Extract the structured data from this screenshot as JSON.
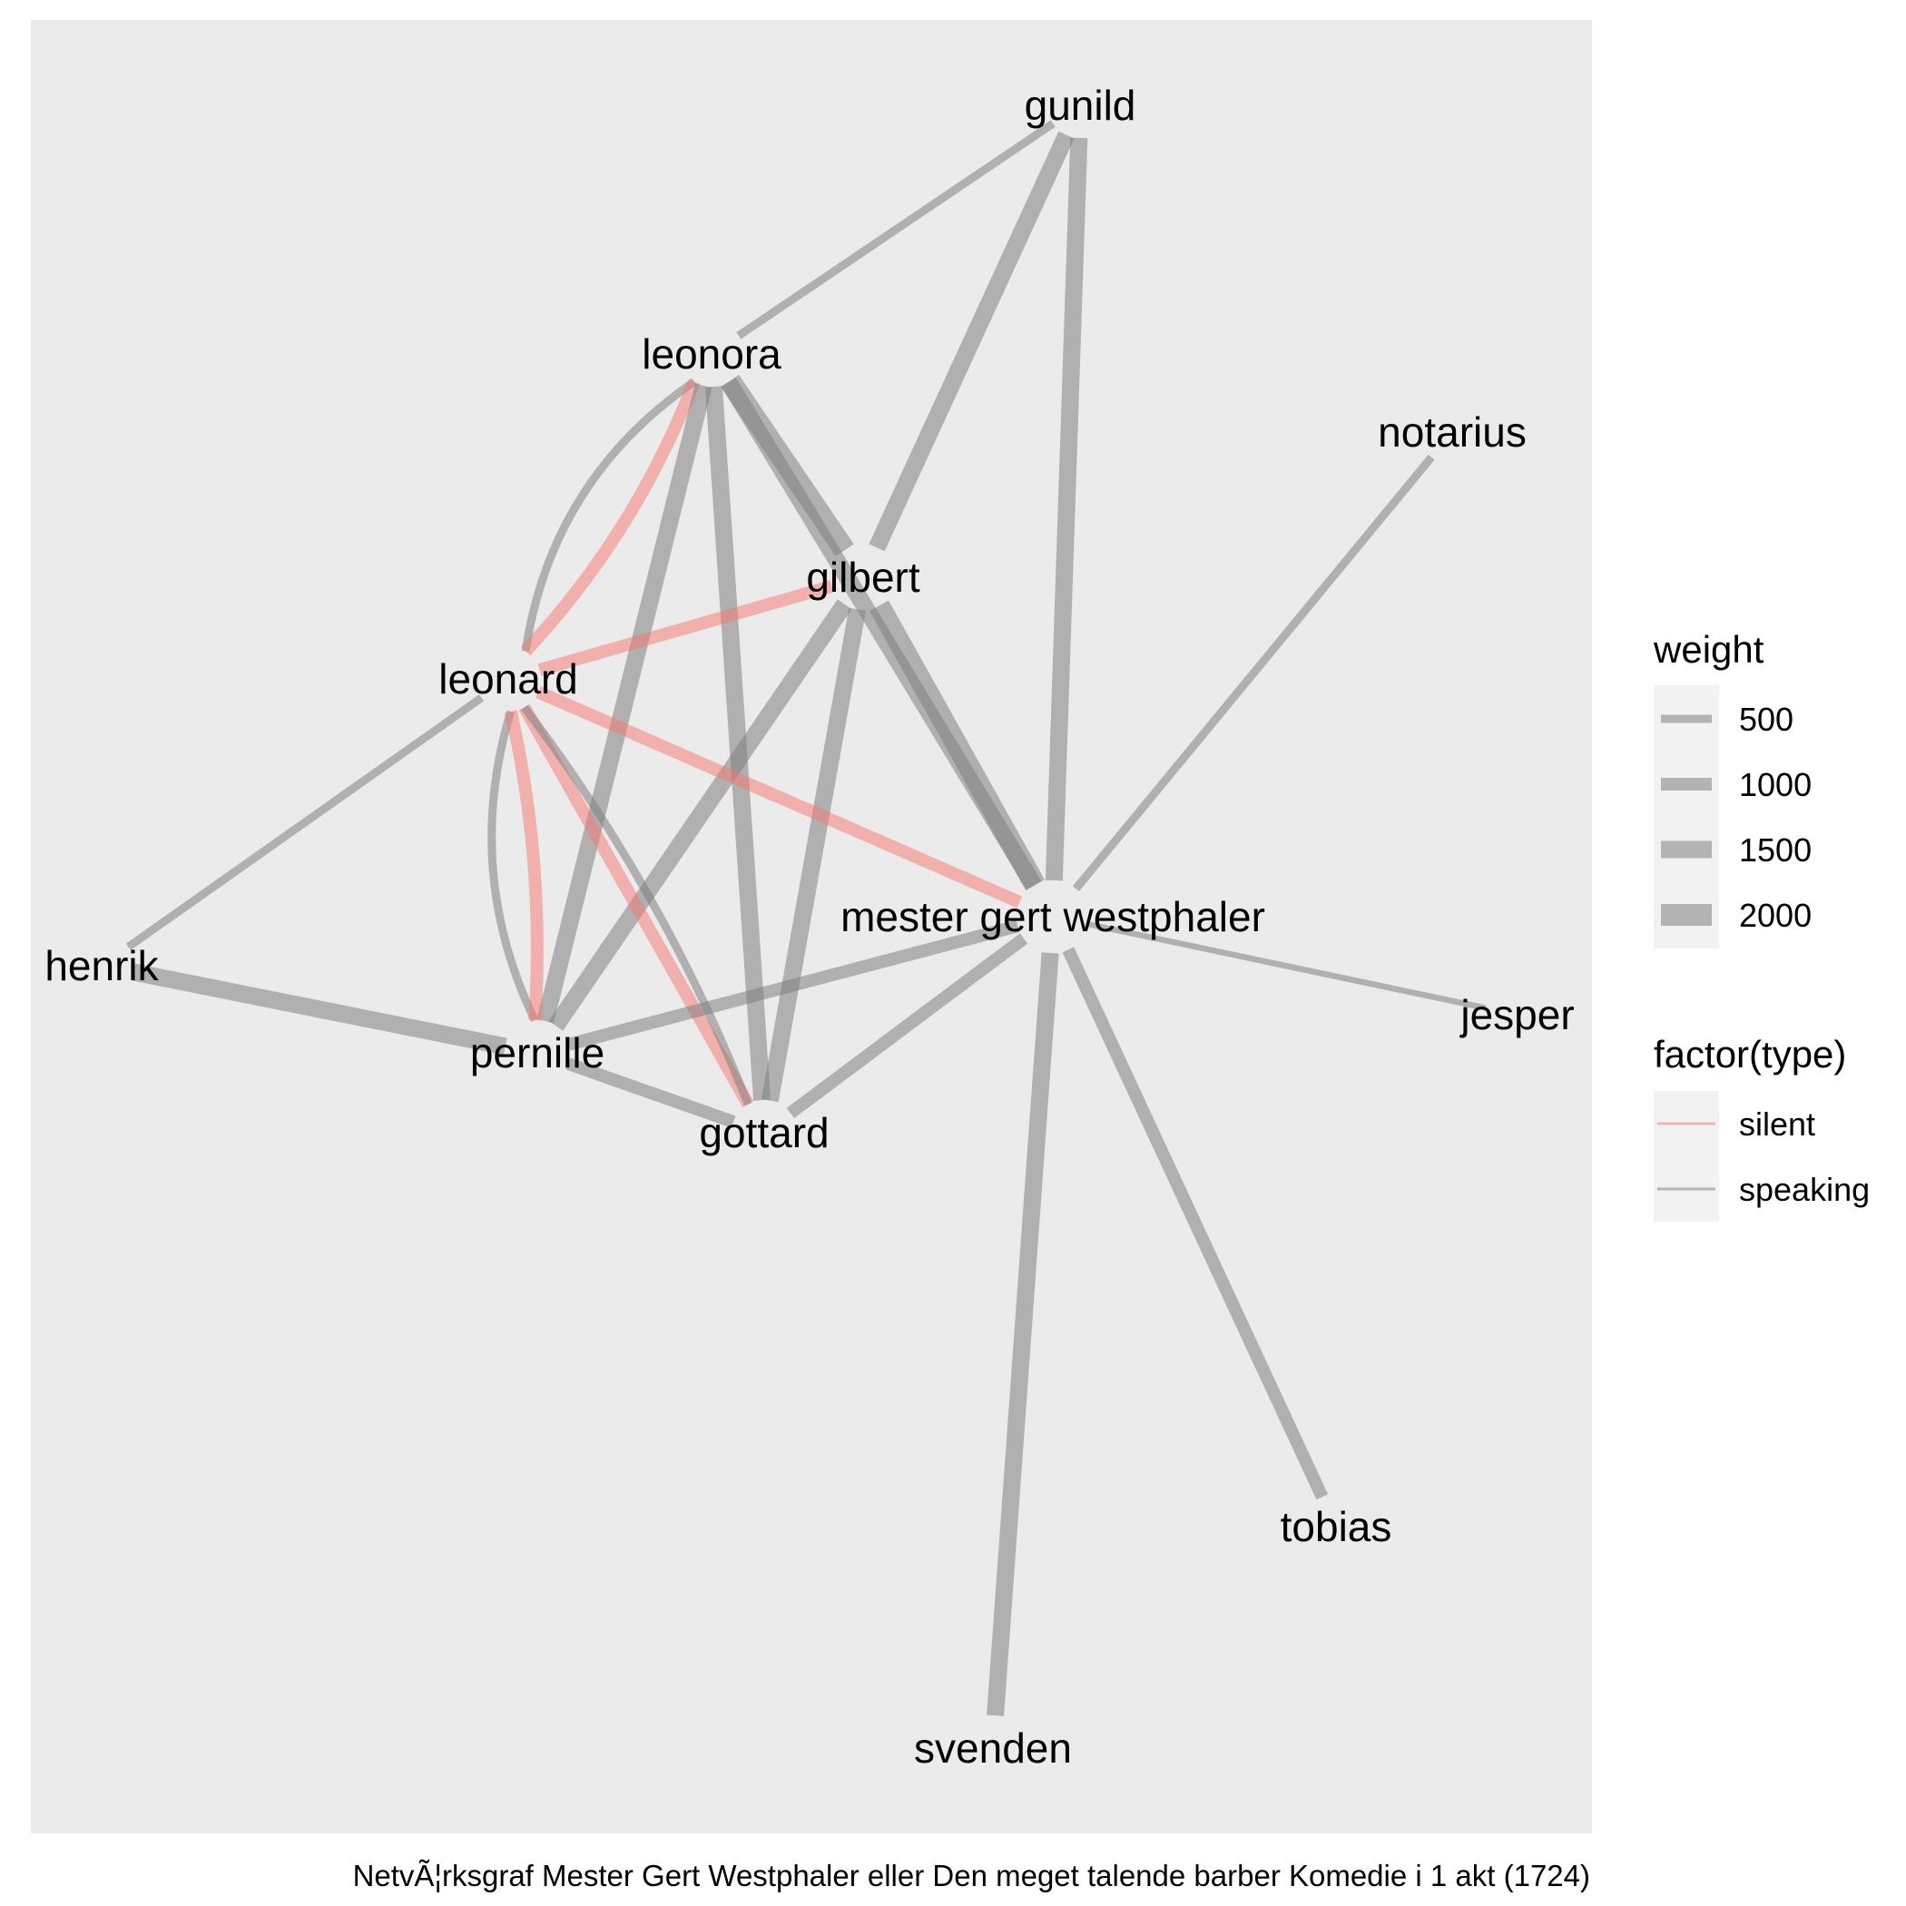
{
  "colors": {
    "panel": "#ebebeb",
    "legend_key_bg": "#f2f2f2",
    "speaking": "#7f7f7f",
    "silent": "#f8766d"
  },
  "nodes": [
    {
      "id": "gunild",
      "label": "gunild"
    },
    {
      "id": "leonora",
      "label": "leonora"
    },
    {
      "id": "notarius",
      "label": "notarius"
    },
    {
      "id": "gilbert",
      "label": "gilbert"
    },
    {
      "id": "leonard",
      "label": "leonard"
    },
    {
      "id": "mester",
      "label": "mester gert westphaler"
    },
    {
      "id": "henrik",
      "label": "henrik"
    },
    {
      "id": "jesper",
      "label": "jesper"
    },
    {
      "id": "pernille",
      "label": "pernille"
    },
    {
      "id": "gottard",
      "label": "gottard"
    },
    {
      "id": "tobias",
      "label": "tobias"
    },
    {
      "id": "svenden",
      "label": "svenden"
    }
  ],
  "edges": [
    {
      "from": "gunild",
      "to": "leonora",
      "type": "speaking",
      "weight": 500
    },
    {
      "from": "gunild",
      "to": "gilbert",
      "type": "speaking",
      "weight": 1500
    },
    {
      "from": "gunild",
      "to": "mester",
      "type": "speaking",
      "weight": 1500
    },
    {
      "from": "leonora",
      "to": "leonard",
      "type": "speaking",
      "weight": 500
    },
    {
      "from": "leonora",
      "to": "leonard",
      "type": "silent",
      "weight": 1000
    },
    {
      "from": "leonora",
      "to": "gilbert",
      "type": "speaking",
      "weight": 2000
    },
    {
      "from": "leonora",
      "to": "mester",
      "type": "speaking",
      "weight": 1500
    },
    {
      "from": "leonora",
      "to": "pernille",
      "type": "speaking",
      "weight": 1500
    },
    {
      "from": "leonora",
      "to": "gottard",
      "type": "speaking",
      "weight": 1500
    },
    {
      "from": "gilbert",
      "to": "leonard",
      "type": "silent",
      "weight": 1000
    },
    {
      "from": "gilbert",
      "to": "mester",
      "type": "speaking",
      "weight": 2000
    },
    {
      "from": "gilbert",
      "to": "pernille",
      "type": "speaking",
      "weight": 1500
    },
    {
      "from": "gilbert",
      "to": "gottard",
      "type": "speaking",
      "weight": 1500
    },
    {
      "from": "leonard",
      "to": "mester",
      "type": "silent",
      "weight": 1000
    },
    {
      "from": "leonard",
      "to": "henrik",
      "type": "speaking",
      "weight": 500
    },
    {
      "from": "leonard",
      "to": "pernille",
      "type": "speaking",
      "weight": 500
    },
    {
      "from": "leonard",
      "to": "pernille",
      "type": "silent",
      "weight": 1000
    },
    {
      "from": "leonard",
      "to": "gottard",
      "type": "silent",
      "weight": 1000
    },
    {
      "from": "leonard",
      "to": "gottard",
      "type": "speaking",
      "weight": 500
    },
    {
      "from": "notarius",
      "to": "mester",
      "type": "speaking",
      "weight": 500
    },
    {
      "from": "mester",
      "to": "jesper",
      "type": "speaking",
      "weight": 250
    },
    {
      "from": "mester",
      "to": "pernille",
      "type": "speaking",
      "weight": 1000
    },
    {
      "from": "mester",
      "to": "gottard",
      "type": "speaking",
      "weight": 1000
    },
    {
      "from": "mester",
      "to": "tobias",
      "type": "speaking",
      "weight": 1000
    },
    {
      "from": "mester",
      "to": "svenden",
      "type": "speaking",
      "weight": 1500
    },
    {
      "from": "henrik",
      "to": "pernille",
      "type": "speaking",
      "weight": 1500
    },
    {
      "from": "pernille",
      "to": "gottard",
      "type": "speaking",
      "weight": 1000
    }
  ],
  "legend": {
    "weight_title": "weight",
    "weight_items": [
      {
        "label": "500",
        "value": 500
      },
      {
        "label": "1000",
        "value": 1000
      },
      {
        "label": "1500",
        "value": 1500
      },
      {
        "label": "2000",
        "value": 2000
      }
    ],
    "type_title": "factor(type)",
    "type_items": [
      {
        "label": "silent",
        "type": "silent"
      },
      {
        "label": "speaking",
        "type": "speaking"
      }
    ]
  },
  "caption": "NetvÃ¦rksgraf Mester Gert Westphaler eller Den meget talende barber Komedie i 1 akt (1724)"
}
